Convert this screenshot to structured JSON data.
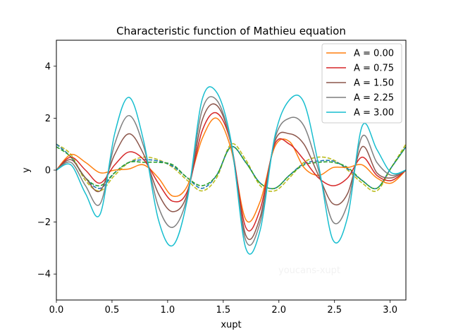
{
  "chart_data": {
    "type": "line",
    "title": "Characteristic function of Mathieu equation",
    "xlabel": "xupt",
    "ylabel": "y",
    "xlim": [
      0,
      3.14159
    ],
    "ylim": [
      -5,
      5
    ],
    "xticks": [
      "0.0",
      "0.5",
      "1.0",
      "1.5",
      "2.0",
      "2.5",
      "3.0"
    ],
    "xtick_values": [
      0,
      0.5,
      1.0,
      1.5,
      2.0,
      2.5,
      3.0
    ],
    "yticks": [
      "−4",
      "−2",
      "0",
      "2",
      "4"
    ],
    "ytick_values": [
      -4,
      -2,
      0,
      2,
      4
    ],
    "grid": false,
    "legend_position": "top-right",
    "watermark": "youcans-xupt",
    "x": [
      0,
      0.1309,
      0.2618,
      0.3927,
      0.5236,
      0.6545,
      0.7854,
      0.9163,
      1.0472,
      1.1781,
      1.309,
      1.4399,
      1.5708,
      1.7017,
      1.8326,
      1.9635,
      2.0944,
      2.2253,
      2.3562,
      2.4871,
      2.618,
      2.7489,
      2.8798,
      3.0107,
      3.1416
    ],
    "series": [
      {
        "name": "A = 0.00",
        "color": "#ff7f0e",
        "style": "solid",
        "values": [
          0,
          0.6,
          0.3,
          -0.1,
          0.0,
          0.05,
          0.2,
          -0.3,
          -1.0,
          -0.6,
          1.2,
          2.0,
          0.8,
          -1.9,
          -1.2,
          0.9,
          1.1,
          0.1,
          -0.2,
          0.1,
          0.1,
          0.2,
          -0.3,
          -0.5,
          0
        ]
      },
      {
        "name": "A = 0.75",
        "color": "#d62728",
        "style": "solid",
        "values": [
          0,
          0.5,
          0.0,
          -0.5,
          0.2,
          0.7,
          0.4,
          -0.5,
          -1.2,
          -0.8,
          1.5,
          2.2,
          1.0,
          -2.2,
          -1.5,
          1.0,
          1.0,
          0.4,
          -0.3,
          -0.6,
          -0.3,
          0.5,
          -0.2,
          -0.4,
          0
        ]
      },
      {
        "name": "A = 1.50",
        "color": "#8c564b",
        "style": "solid",
        "values": [
          0,
          0.4,
          -0.3,
          -0.8,
          0.6,
          1.4,
          0.6,
          -0.9,
          -1.6,
          -0.9,
          1.9,
          2.5,
          1.0,
          -2.5,
          -1.8,
          1.1,
          1.4,
          1.0,
          -0.2,
          -1.3,
          -0.9,
          0.9,
          -0.1,
          -0.3,
          0
        ]
      },
      {
        "name": "A = 2.25",
        "color": "#7f7f7f",
        "style": "solid",
        "values": [
          0,
          0.3,
          -0.6,
          -1.3,
          1.0,
          2.1,
          0.9,
          -1.4,
          -2.2,
          -1.0,
          2.3,
          2.7,
          1.0,
          -2.7,
          -2.0,
          1.2,
          2.0,
          1.7,
          0.0,
          -2.0,
          -1.3,
          1.3,
          0.3,
          -0.2,
          0
        ]
      },
      {
        "name": "A = 3.00",
        "color": "#17becf",
        "style": "solid",
        "values": [
          0,
          0.2,
          -0.9,
          -1.7,
          1.4,
          2.8,
          1.1,
          -1.9,
          -2.9,
          -1.1,
          2.7,
          3.0,
          1.1,
          -3.0,
          -2.3,
          1.3,
          2.7,
          2.6,
          0.2,
          -2.7,
          -1.8,
          1.7,
          0.8,
          -0.1,
          0
        ]
      },
      {
        "color": "#bcbd22",
        "style": "dashed",
        "values": [
          1.0,
          0.6,
          -0.4,
          -0.8,
          -0.2,
          0.3,
          0.5,
          0.4,
          0.1,
          -0.4,
          -0.8,
          -0.3,
          1.0,
          0.4,
          -0.6,
          -0.8,
          -0.3,
          0.3,
          0.5,
          0.4,
          0.0,
          -0.5,
          -0.8,
          0.1,
          1.0
        ]
      },
      {
        "color": "#1f77b4",
        "style": "dashed",
        "values": [
          1.0,
          0.5,
          -0.3,
          -0.7,
          -0.1,
          0.3,
          0.4,
          0.35,
          0.15,
          -0.3,
          -0.7,
          -0.2,
          0.9,
          0.3,
          -0.5,
          -0.7,
          -0.2,
          0.25,
          0.35,
          0.35,
          0.05,
          -0.4,
          -0.7,
          0.1,
          0.9
        ]
      },
      {
        "color": "#2ca02c",
        "style": "dashed",
        "values": [
          0.9,
          0.5,
          -0.3,
          -0.6,
          -0.1,
          0.3,
          0.3,
          0.3,
          0.2,
          -0.3,
          -0.6,
          -0.2,
          0.9,
          0.3,
          -0.5,
          -0.7,
          -0.2,
          0.2,
          0.3,
          0.3,
          0.1,
          -0.4,
          -0.7,
          0.1,
          0.9
        ]
      }
    ]
  }
}
